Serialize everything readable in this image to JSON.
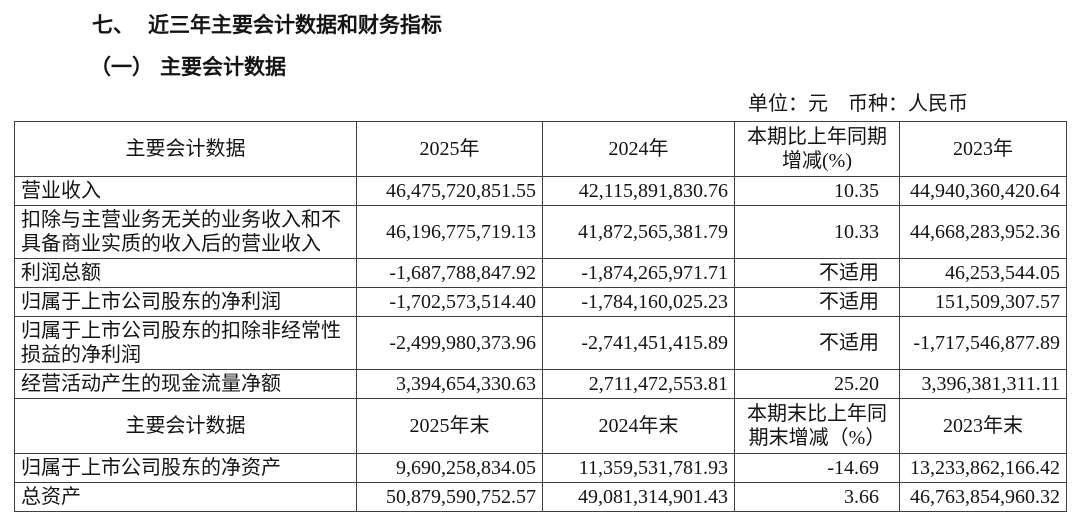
{
  "page": {
    "section_no": "七、",
    "section_title": "近三年主要会计数据和财务指标",
    "subsection_no": "（一）",
    "subsection_title": "主要会计数据",
    "unit_note": "单位：元　币种：人民币"
  },
  "table": {
    "period_header": {
      "metric": "主要会计数据",
      "y2025": "2025年",
      "y2024": "2024年",
      "change_line1": "本期比上年同期",
      "change_line2": "增减(%)",
      "y2023": "2023年"
    },
    "period_rows": [
      [
        "营业收入",
        "46,475,720,851.55",
        "42,115,891,830.76",
        "10.35",
        "44,940,360,420.64"
      ],
      [
        "扣除与主营业务无关的业务收入和不具备商业实质的收入后的营业收入",
        "46,196,775,719.13",
        "41,872,565,381.79",
        "10.33",
        "44,668,283,952.36"
      ],
      [
        "利润总额",
        "-1,687,788,847.92",
        "-1,874,265,971.71",
        "不适用",
        "46,253,544.05"
      ],
      [
        "归属于上市公司股东的净利润",
        "-1,702,573,514.40",
        "-1,784,160,025.23",
        "不适用",
        "151,509,307.57"
      ],
      [
        "归属于上市公司股东的扣除非经常性损益的净利润",
        "-2,499,980,373.96",
        "-2,741,451,415.89",
        "不适用",
        "-1,717,546,877.89"
      ],
      [
        "经营活动产生的现金流量净额",
        "3,394,654,330.63",
        "2,711,472,553.81",
        "25.20",
        "3,396,381,311.11"
      ]
    ],
    "endpoint_header": {
      "metric": "主要会计数据",
      "y2025": "2025年末",
      "y2024": "2024年末",
      "change_line1": "本期末比上年同",
      "change_line2": "期末增减（%）",
      "y2023": "2023年末"
    },
    "endpoint_rows": [
      [
        "归属于上市公司股东的净资产",
        "9,690,258,834.05",
        "11,359,531,781.93",
        "-14.69",
        "13,233,862,166.42"
      ],
      [
        "总资产",
        "50,879,590,752.57",
        "49,081,314,901.43",
        "3.66",
        "46,763,854,960.32"
      ]
    ]
  }
}
